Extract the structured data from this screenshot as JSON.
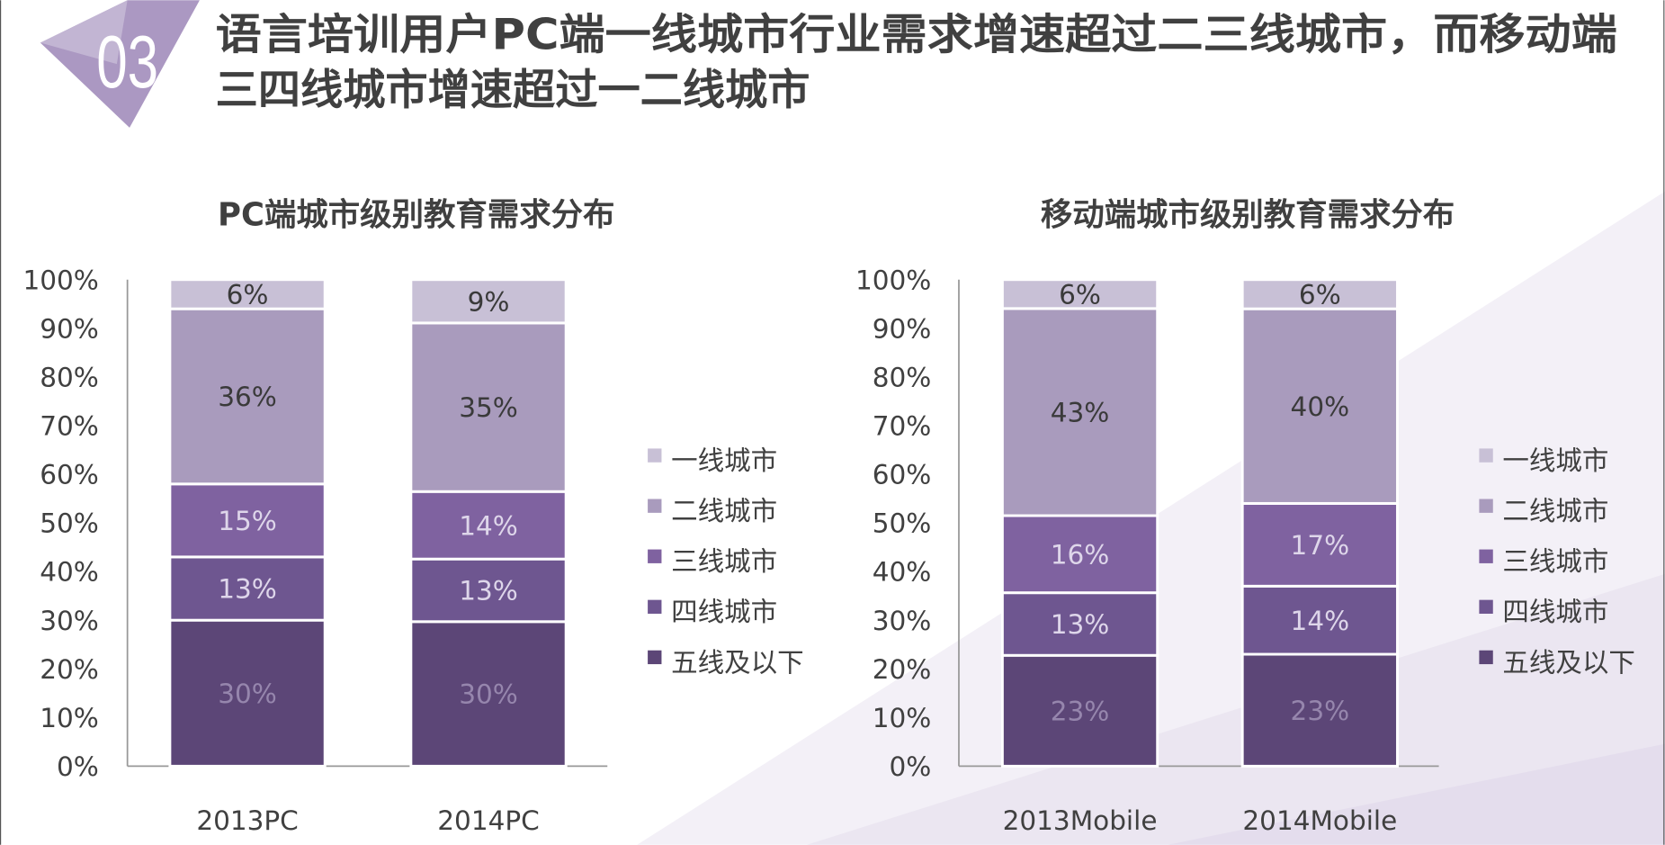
{
  "header": {
    "badge": "03",
    "title_line1": "语言培训用户PC端一线城市行业需求增速超过二三线城市，而移动端",
    "title_line2": "三四线城市增速超过一二线城市"
  },
  "colors": {
    "tier1": "#c8c0d6",
    "tier2": "#a99bbd",
    "tier3": "#7f62a0",
    "tier4": "#6e5690",
    "tier5": "#5c4677",
    "text": "#404040",
    "badge": "#ab98c2"
  },
  "chart_data": [
    {
      "type": "bar",
      "stacked": true,
      "title": "PC端城市级别教育需求分布",
      "categories": [
        "2013PC",
        "2014PC"
      ],
      "yticks": [
        "0%",
        "10%",
        "20%",
        "30%",
        "40%",
        "50%",
        "60%",
        "70%",
        "80%",
        "90%",
        "100%"
      ],
      "ylim": [
        0,
        100
      ],
      "legend_position": "right",
      "series": [
        {
          "name": "五线及以下",
          "key": "tier5",
          "values": [
            30,
            30
          ],
          "labels": [
            "30%",
            "30%"
          ]
        },
        {
          "name": "四线城市",
          "key": "tier4",
          "values": [
            13,
            13
          ],
          "labels": [
            "13%",
            "13%"
          ]
        },
        {
          "name": "三线城市",
          "key": "tier3",
          "values": [
            15,
            14
          ],
          "labels": [
            "15%",
            "14%"
          ]
        },
        {
          "name": "二线城市",
          "key": "tier2",
          "values": [
            36,
            35
          ],
          "labels": [
            "36%",
            "35%"
          ]
        },
        {
          "name": "一线城市",
          "key": "tier1",
          "values": [
            6,
            9
          ],
          "labels": [
            "6%",
            "9%"
          ]
        }
      ]
    },
    {
      "type": "bar",
      "stacked": true,
      "title": "移动端城市级别教育需求分布",
      "categories": [
        "2013Mobile",
        "2014Mobile"
      ],
      "yticks": [
        "0%",
        "10%",
        "20%",
        "30%",
        "40%",
        "50%",
        "60%",
        "70%",
        "80%",
        "90%",
        "100%"
      ],
      "ylim": [
        0,
        100
      ],
      "legend_position": "right",
      "series": [
        {
          "name": "五线及以下",
          "key": "tier5",
          "values": [
            23,
            23
          ],
          "labels": [
            "23%",
            "23%"
          ]
        },
        {
          "name": "四线城市",
          "key": "tier4",
          "values": [
            13,
            14
          ],
          "labels": [
            "13%",
            "14%"
          ]
        },
        {
          "name": "三线城市",
          "key": "tier3",
          "values": [
            16,
            17
          ],
          "labels": [
            "16%",
            "17%"
          ]
        },
        {
          "name": "二线城市",
          "key": "tier2",
          "values": [
            43,
            40
          ],
          "labels": [
            "43%",
            "40%"
          ]
        },
        {
          "name": "一线城市",
          "key": "tier1",
          "values": [
            6,
            6
          ],
          "labels": [
            "6%",
            "6%"
          ]
        }
      ]
    }
  ]
}
